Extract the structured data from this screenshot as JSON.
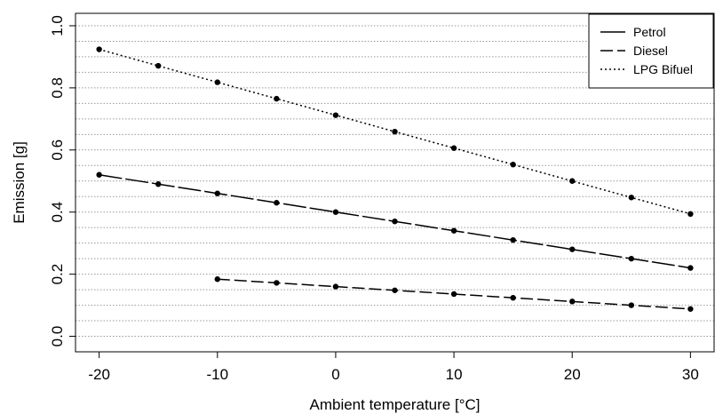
{
  "chart_data": {
    "type": "line",
    "xlabel": "Ambient temperature [°C]",
    "ylabel": "Emission [g]",
    "xlim": [
      -22,
      32
    ],
    "ylim": [
      -0.05,
      1.04
    ],
    "xticks": [
      -20,
      -10,
      0,
      10,
      20,
      30
    ],
    "xtick_labels": [
      "-20",
      "-10",
      "0",
      "10",
      "20",
      "30"
    ],
    "yticks": [
      0.0,
      0.2,
      0.4,
      0.6,
      0.8,
      1.0
    ],
    "ytick_labels": [
      "0.0",
      "0.2",
      "0.4",
      "0.6",
      "0.8",
      "1.0"
    ],
    "grid": "horizontal dotted lines every 0.05",
    "legend_position": "top-right",
    "series": [
      {
        "name": "Petrol",
        "line_style": "solid",
        "x": [
          -20,
          -15,
          -10,
          -5,
          0,
          5,
          10,
          15,
          20,
          25,
          30
        ],
        "y": [
          0.52,
          0.49,
          0.46,
          0.43,
          0.4,
          0.37,
          0.34,
          0.31,
          0.28,
          0.25,
          0.22
        ]
      },
      {
        "name": "Diesel",
        "line_style": "dashed",
        "x": [
          -10,
          -5,
          0,
          5,
          10,
          15,
          20,
          25,
          30
        ],
        "y": [
          0.184,
          0.172,
          0.16,
          0.148,
          0.136,
          0.124,
          0.112,
          0.1,
          0.088
        ]
      },
      {
        "name": "LPG Bifuel",
        "line_style": "dotted",
        "x": [
          -20,
          -15,
          -10,
          -5,
          0,
          5,
          10,
          15,
          20,
          25,
          30
        ],
        "y": [
          0.924,
          0.871,
          0.818,
          0.765,
          0.712,
          0.659,
          0.606,
          0.553,
          0.5,
          0.447,
          0.394
        ]
      }
    ]
  }
}
